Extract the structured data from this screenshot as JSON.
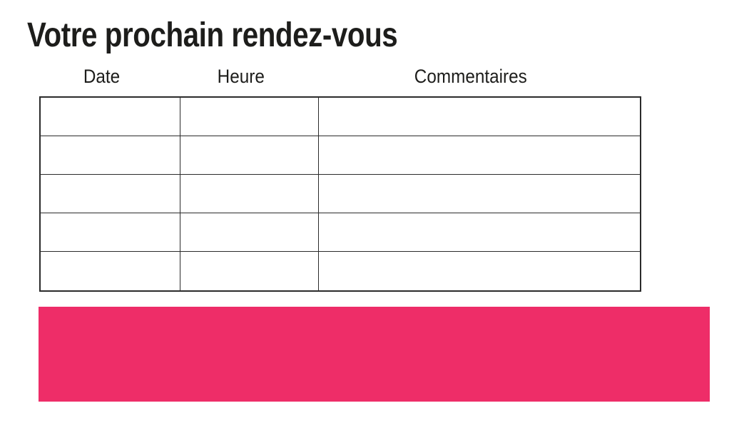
{
  "page": {
    "title": "Votre prochain rendez-vous"
  },
  "table": {
    "headers": [
      "Date",
      "Heure",
      "Commentaires"
    ],
    "rows": [
      [
        "",
        "",
        ""
      ],
      [
        "",
        "",
        ""
      ],
      [
        "",
        "",
        ""
      ],
      [
        "",
        "",
        ""
      ],
      [
        "",
        "",
        ""
      ]
    ]
  },
  "colors": {
    "accent_pink": "#ee2d68",
    "text": "#1d1d1b",
    "table_border": "#2b2b2b",
    "background": "#ffffff"
  }
}
